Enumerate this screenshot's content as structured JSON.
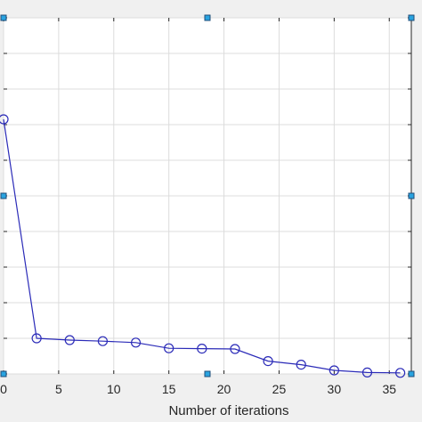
{
  "chart_data": {
    "type": "line",
    "title": "",
    "xlabel": "Number of iterations",
    "ylabel": "",
    "xlim": [
      0,
      37
    ],
    "ylim": [
      0,
      10
    ],
    "x_ticks": [
      0,
      5,
      10,
      15,
      20,
      25,
      30,
      35
    ],
    "x_tick_labels": [
      "0",
      "5",
      "10",
      "15",
      "20",
      "25",
      "30",
      "35"
    ],
    "y_grid": [
      0,
      1,
      2,
      3,
      4,
      5,
      6,
      7,
      8,
      9,
      10
    ],
    "grid": true,
    "series": [
      {
        "color": "#2b2bb8",
        "marker": "circle",
        "x": [
          0,
          3,
          6,
          9,
          12,
          15,
          18,
          21,
          24,
          27,
          30,
          33,
          36
        ],
        "y": [
          7.15,
          1.0,
          0.95,
          0.92,
          0.88,
          0.72,
          0.71,
          0.7,
          0.36,
          0.26,
          0.1,
          0.04,
          0.03
        ]
      }
    ]
  },
  "colors": {
    "background": "#f0f0f0",
    "plot_background": "#ffffff",
    "grid": "#dcdcdc",
    "axis": "#262626",
    "selection_handle": "#29a3e0"
  }
}
